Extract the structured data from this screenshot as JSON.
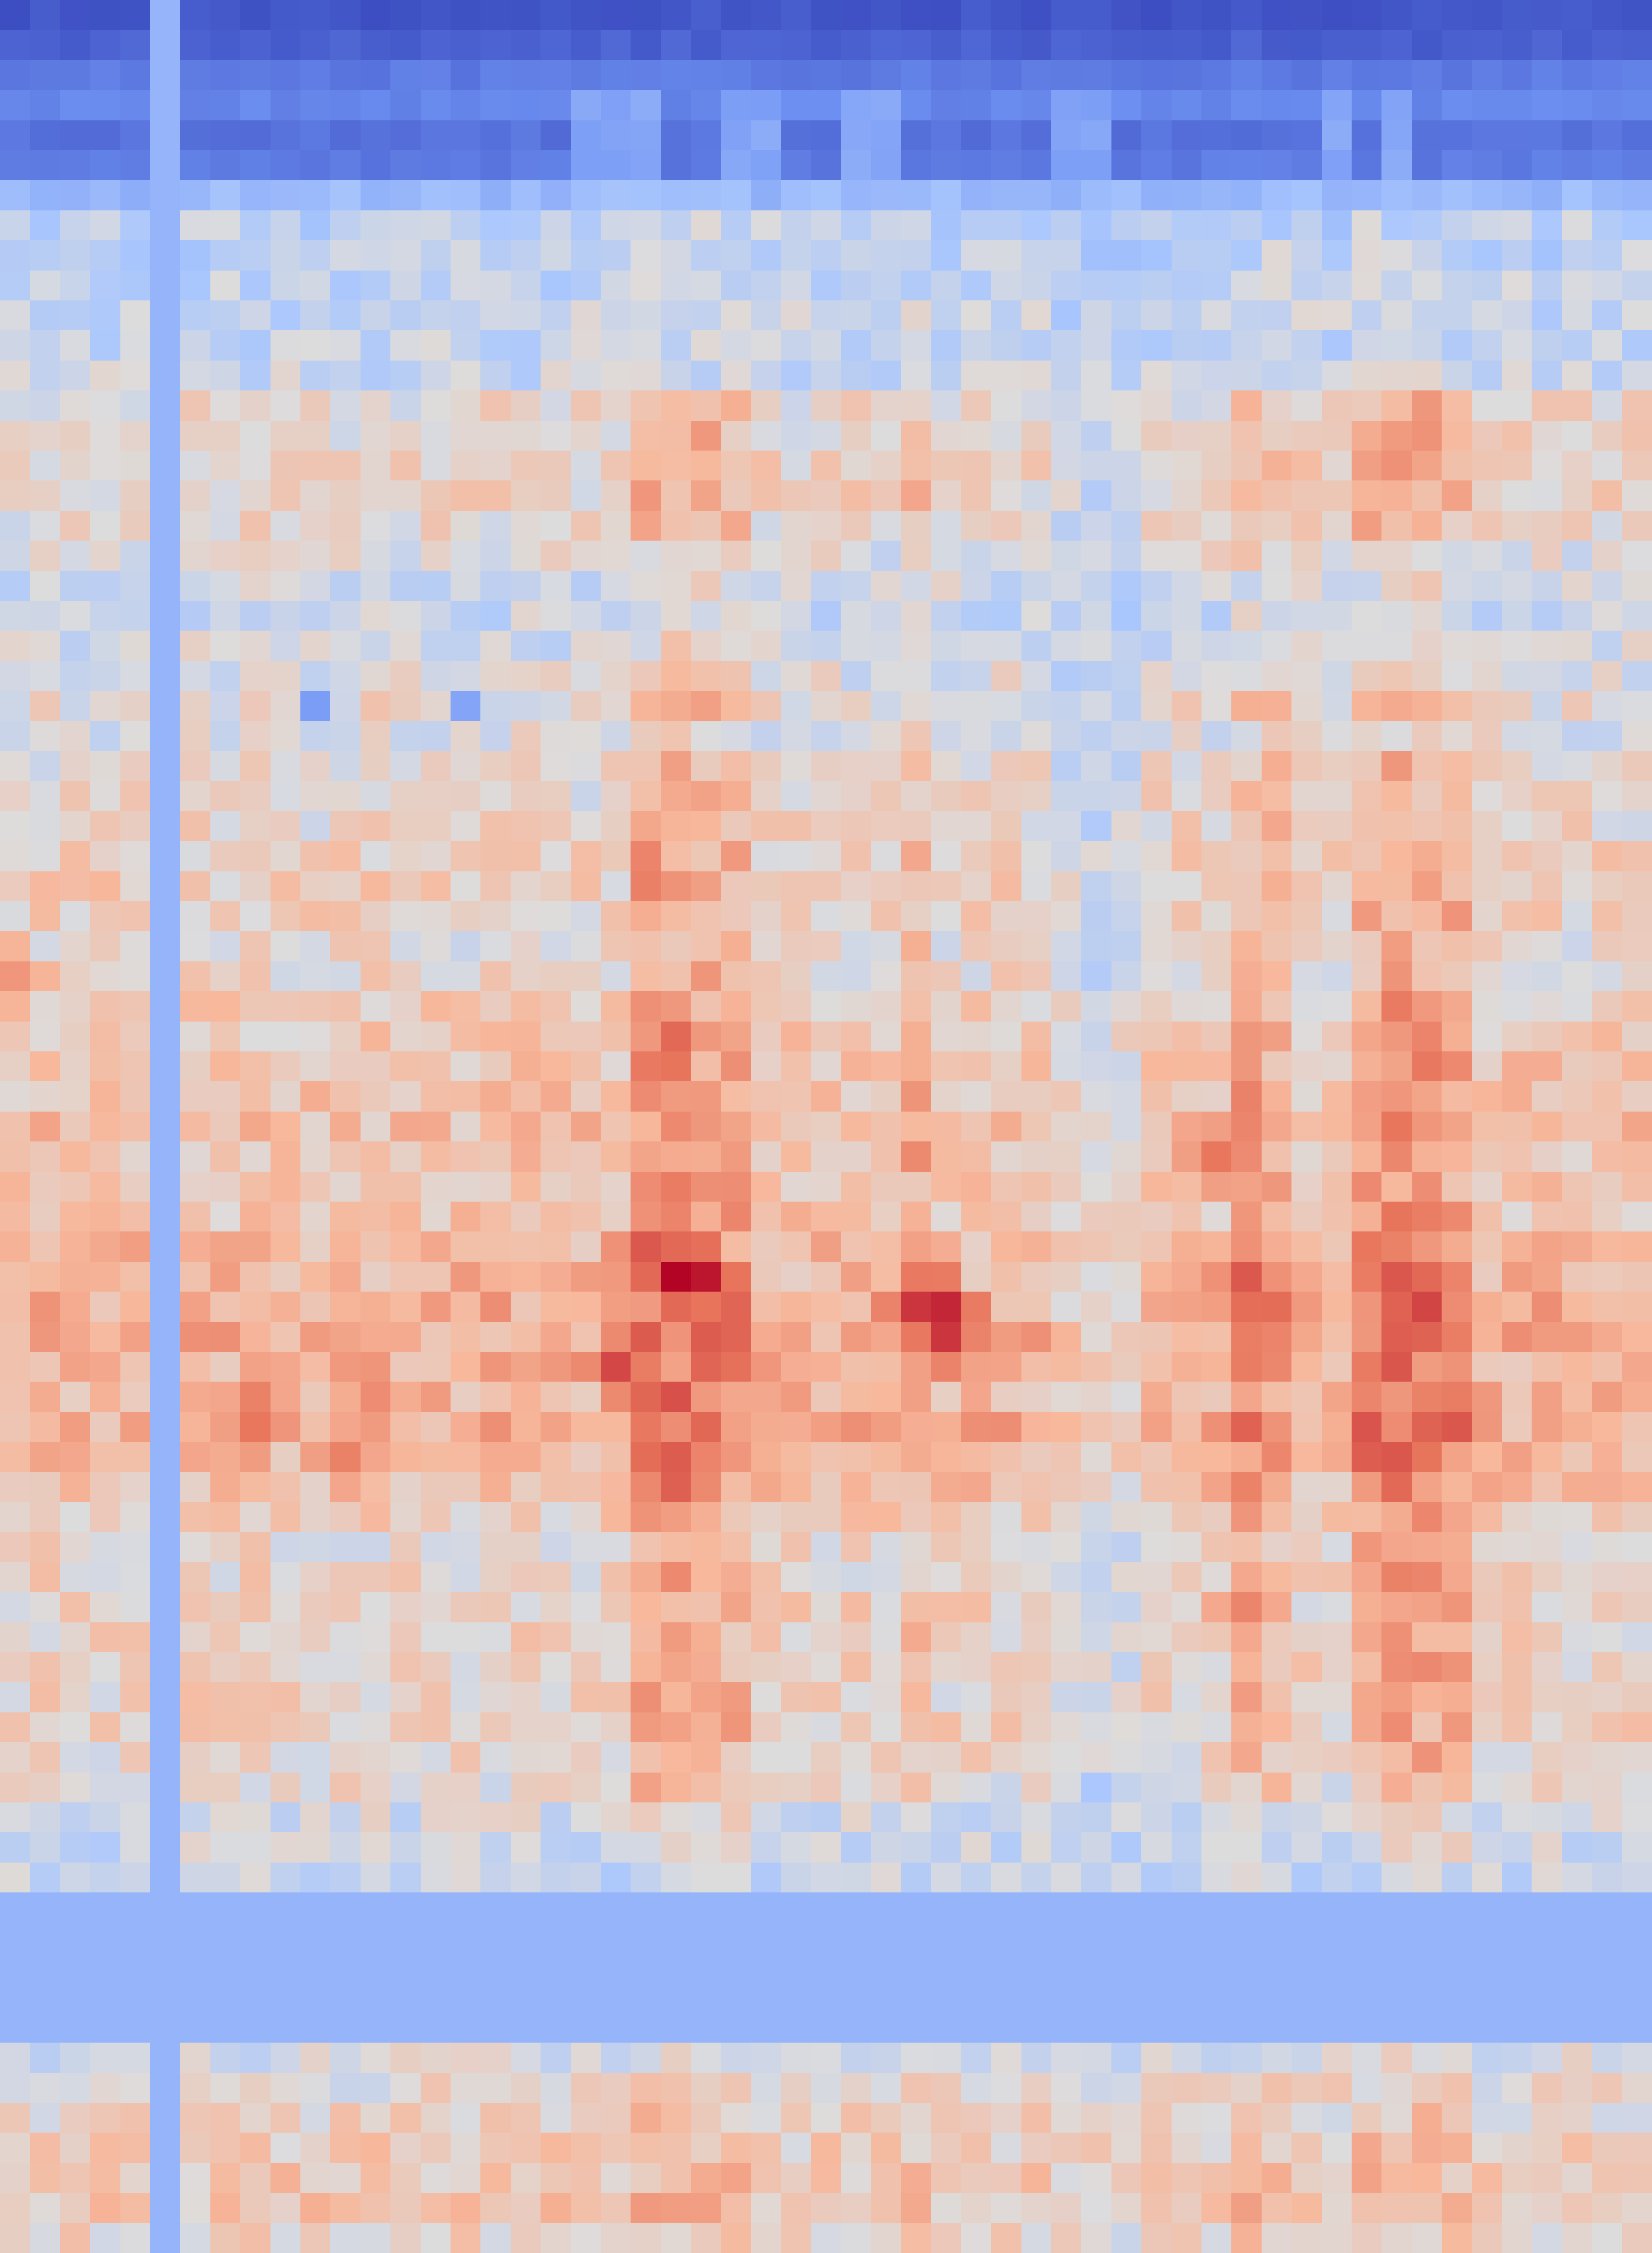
{
  "chart_data": {
    "type": "heatmap",
    "title": "",
    "xlabel": "",
    "ylabel": "",
    "colormap": "coolwarm",
    "colormap_stops": [
      "#3b4cc0",
      "#6f92f3",
      "#aac7fd",
      "#dddcdc",
      "#f7b89c",
      "#e7745b",
      "#b40426"
    ],
    "value_range": [
      -1,
      1
    ],
    "grid": false,
    "legend": "none",
    "n_rows": 75,
    "n_cols": 55,
    "separator_value": -0.45,
    "separator_columns": [
      5
    ],
    "separator_rows": [
      63,
      64,
      65,
      66,
      67
    ],
    "row_profile": [
      -0.95,
      -0.9,
      -0.78,
      -0.72,
      -0.82,
      -0.78,
      -0.42,
      -0.2,
      -0.18,
      -0.15,
      -0.14,
      -0.14,
      -0.12,
      0.05,
      0.08,
      0.12,
      0.1,
      0.06,
      0.0,
      -0.08,
      -0.12,
      -0.06,
      -0.02,
      0.05,
      0.0,
      0.05,
      0.06,
      0.08,
      0.12,
      0.15,
      0.12,
      0.05,
      0.08,
      0.15,
      0.18,
      0.2,
      0.22,
      0.25,
      0.22,
      0.18,
      0.2,
      0.28,
      0.3,
      0.35,
      0.38,
      0.33,
      0.3,
      0.35,
      0.3,
      0.25,
      0.15,
      0.08,
      0.1,
      0.12,
      0.1,
      0.12,
      0.1,
      0.12,
      0.08,
      0.05,
      -0.05,
      -0.1,
      -0.15,
      -0.45,
      -0.45,
      -0.45,
      -0.45,
      -0.45,
      -0.05,
      0.05,
      0.1,
      0.15,
      0.18,
      0.2,
      0.1
    ],
    "hotspots": [
      {
        "row": 42,
        "col": 22,
        "value": 1.0
      },
      {
        "row": 42,
        "col": 23,
        "value": 0.95
      },
      {
        "row": 43,
        "col": 31,
        "value": 0.9
      },
      {
        "row": 43,
        "col": 30,
        "value": 0.85
      },
      {
        "row": 44,
        "col": 31,
        "value": 0.85
      },
      {
        "row": 45,
        "col": 20,
        "value": 0.8
      },
      {
        "row": 41,
        "col": 21,
        "value": 0.75
      },
      {
        "row": 34,
        "col": 22,
        "value": 0.7
      },
      {
        "row": 38,
        "col": 40,
        "value": 0.65
      },
      {
        "row": 42,
        "col": 41,
        "value": 0.75
      },
      {
        "row": 42,
        "col": 47,
        "value": 0.7
      },
      {
        "row": 43,
        "col": 46,
        "value": 0.72
      },
      {
        "row": 46,
        "col": 8,
        "value": 0.6
      },
      {
        "row": 47,
        "col": 8,
        "value": 0.65
      },
      {
        "row": 48,
        "col": 11,
        "value": 0.6
      },
      {
        "row": 46,
        "col": 12,
        "value": 0.55
      },
      {
        "row": 52,
        "col": 46,
        "value": 0.6
      },
      {
        "row": 52,
        "col": 47,
        "value": 0.58
      },
      {
        "row": 53,
        "col": 41,
        "value": 0.58
      },
      {
        "row": 32,
        "col": 0,
        "value": 0.5
      },
      {
        "row": 23,
        "col": 10,
        "value": -0.6
      },
      {
        "row": 23,
        "col": 15,
        "value": -0.55
      }
    ],
    "hot_columns": [
      {
        "col": 21,
        "boost": 0.28
      },
      {
        "col": 22,
        "boost": 0.3
      },
      {
        "col": 23,
        "boost": 0.25
      },
      {
        "col": 24,
        "boost": 0.2
      },
      {
        "col": 30,
        "boost": 0.15
      },
      {
        "col": 41,
        "boost": 0.2
      },
      {
        "col": 42,
        "boost": 0.15
      },
      {
        "col": 45,
        "boost": 0.25
      },
      {
        "col": 46,
        "boost": 0.3
      },
      {
        "col": 47,
        "boost": 0.28
      },
      {
        "col": 48,
        "boost": 0.22
      }
    ],
    "cool_columns": [
      {
        "col": 35,
        "boost": -0.18
      },
      {
        "col": 36,
        "boost": -0.2
      },
      {
        "col": 37,
        "boost": -0.18
      }
    ],
    "top_band_bright_columns": [
      19,
      20,
      21,
      24,
      25,
      28,
      29,
      35,
      36,
      44,
      46
    ]
  }
}
